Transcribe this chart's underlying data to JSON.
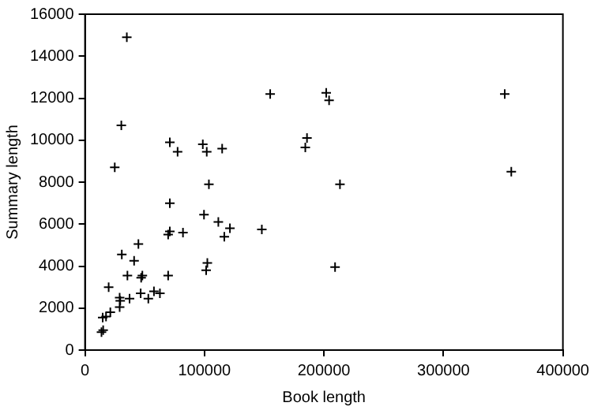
{
  "chart_data": {
    "type": "scatter",
    "xlabel": "Book length",
    "ylabel": "Summary length",
    "xlim": [
      0,
      400000
    ],
    "ylim": [
      0,
      16000
    ],
    "xticks": [
      0,
      100000,
      200000,
      300000,
      400000
    ],
    "yticks": [
      0,
      2000,
      4000,
      6000,
      8000,
      10000,
      12000,
      14000,
      16000
    ],
    "grid": false,
    "legend": false,
    "marker": "cross",
    "series": [
      {
        "color": "#000000",
        "x": [
          35000,
          30400,
          155000,
          24900,
          71000,
          77500,
          98600,
          101900,
          114800,
          103700,
          71000,
          99600,
          111600,
          71000,
          69600,
          82000,
          121300,
          116600,
          148000,
          44700,
          30800,
          41100,
          102400,
          101400,
          35500,
          48000,
          47000,
          69600,
          19800,
          57700,
          62700,
          46600,
          29000,
          29500,
          37300,
          53000,
          29000,
          21200,
          17600,
          14800,
          15200,
          13800,
          201900,
          204300,
          185800,
          184400,
          213400,
          209300,
          351300,
          356800
        ],
        "values": [
          14900,
          10700,
          12200,
          8700,
          9900,
          9450,
          9800,
          9450,
          9600,
          7900,
          7000,
          6450,
          6100,
          5650,
          5500,
          5600,
          5800,
          5400,
          5750,
          5050,
          4550,
          4250,
          4150,
          3800,
          3550,
          3550,
          3450,
          3550,
          3000,
          2800,
          2700,
          2700,
          2500,
          2350,
          2450,
          2450,
          2050,
          1800,
          1600,
          1550,
          950,
          850,
          12250,
          11900,
          10100,
          9650,
          7900,
          3950,
          12200,
          8500
        ]
      }
    ]
  }
}
